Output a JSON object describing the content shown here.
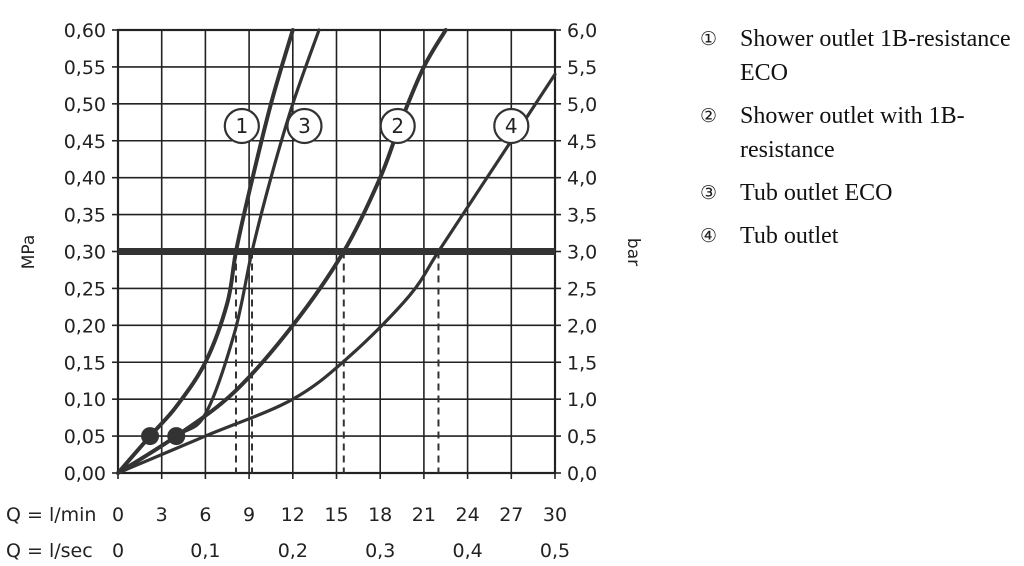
{
  "chart_data": {
    "type": "line",
    "ylabel_left": "MPa",
    "ylabel_right": "bar",
    "y_ticks_left": [
      "0,00",
      "0,05",
      "0,10",
      "0,15",
      "0,20",
      "0,25",
      "0,30",
      "0,35",
      "0,40",
      "0,45",
      "0,50",
      "0,55",
      "0,60"
    ],
    "y_ticks_right": [
      "0,0",
      "0,5",
      "1,0",
      "1,5",
      "2,0",
      "2,5",
      "3,0",
      "3,5",
      "4,0",
      "4,5",
      "5,0",
      "5,5",
      "6,0"
    ],
    "ylim": [
      0,
      0.6
    ],
    "xlim": [
      0,
      30
    ],
    "x_ticks": [
      0,
      3,
      6,
      9,
      12,
      15,
      18,
      21,
      24,
      27,
      30
    ],
    "x_row1_label": "Q = l/min",
    "x_row1_ticks": [
      "0",
      "3",
      "6",
      "9",
      "12",
      "15",
      "18",
      "21",
      "24",
      "27",
      "30"
    ],
    "x_row2_label": "Q = l/sec",
    "x_row2_ticks": [
      {
        "x": 0,
        "label": "0"
      },
      {
        "x": 6,
        "label": "0,1"
      },
      {
        "x": 12,
        "label": "0,2"
      },
      {
        "x": 18,
        "label": "0,3"
      },
      {
        "x": 24,
        "label": "0,4"
      },
      {
        "x": 30,
        "label": "0,5"
      }
    ],
    "reference_line": {
      "y": 0.3
    },
    "series": [
      {
        "name": "1",
        "x": [
          0,
          2.2,
          4,
          6,
          7.5,
          8.1,
          9,
          10.5,
          12
        ],
        "y": [
          0,
          0.05,
          0.09,
          0.15,
          0.23,
          0.3,
          0.38,
          0.5,
          0.6
        ],
        "label_x": 8.5,
        "label_y": 0.47
      },
      {
        "name": "3",
        "x": [
          0,
          4,
          6,
          8,
          9.2,
          10.5,
          12,
          13.8
        ],
        "y": [
          0,
          0.05,
          0.08,
          0.19,
          0.3,
          0.4,
          0.5,
          0.6
        ],
        "label_x": 12.8,
        "label_y": 0.47
      },
      {
        "name": "2",
        "x": [
          0,
          4,
          8,
          12,
          15.5,
          18,
          19.5,
          21,
          22.5
        ],
        "y": [
          0,
          0.05,
          0.11,
          0.2,
          0.3,
          0.4,
          0.48,
          0.55,
          0.6
        ],
        "label_x": 19.2,
        "label_y": 0.47
      },
      {
        "name": "4",
        "x": [
          0,
          6,
          12,
          16,
          20,
          22,
          25,
          28,
          30
        ],
        "y": [
          0,
          0.05,
          0.1,
          0.16,
          0.24,
          0.3,
          0.39,
          0.48,
          0.54
        ],
        "label_x": 27,
        "label_y": 0.47
      }
    ],
    "markers": [
      {
        "x": 2.2,
        "y": 0.05
      },
      {
        "x": 4.0,
        "y": 0.05
      }
    ],
    "dashed_drops": [
      8.1,
      9.2,
      15.5,
      22.0
    ]
  },
  "legend": [
    {
      "mark": "①",
      "text": "Shower outlet 1B-resistance ECO"
    },
    {
      "mark": "②",
      "text": "Shower outlet with 1B-resistance"
    },
    {
      "mark": "③",
      "text": "Tub outlet ECO"
    },
    {
      "mark": "④",
      "text": "Tub outlet"
    }
  ]
}
